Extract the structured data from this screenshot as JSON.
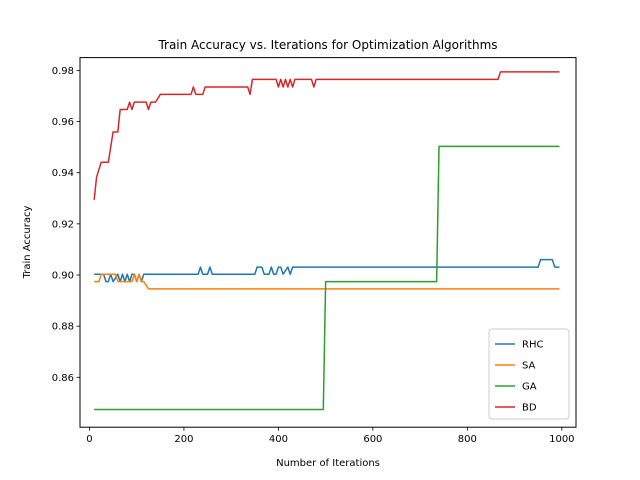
{
  "chart_data": {
    "type": "line",
    "title": "Train Accuracy vs. Iterations for Optimization Algorithms",
    "xlabel": "Number of Iterations",
    "ylabel": "Train Accuracy",
    "xlim": [
      -20,
      1030
    ],
    "ylim": [
      0.8405,
      0.985
    ],
    "xticks": [
      0,
      200,
      400,
      600,
      800,
      1000
    ],
    "xtick_labels": [
      "0",
      "200",
      "400",
      "600",
      "800",
      "1000"
    ],
    "yticks": [
      0.86,
      0.88,
      0.9,
      0.92,
      0.94,
      0.96,
      0.98
    ],
    "ytick_labels": [
      "0.86",
      "0.88",
      "0.90",
      "0.92",
      "0.94",
      "0.96",
      "0.98"
    ],
    "grid": false,
    "legend_position": "lower-right",
    "series": [
      {
        "name": "RHC",
        "color": "#1f77b4",
        "x": [
          10,
          30,
          35,
          40,
          45,
          50,
          60,
          65,
          70,
          75,
          80,
          85,
          90,
          95,
          100,
          105,
          110,
          115,
          230,
          235,
          240,
          250,
          255,
          260,
          350,
          355,
          365,
          370,
          380,
          385,
          390,
          395,
          400,
          405,
          410,
          420,
          425,
          430,
          435,
          440,
          950,
          955,
          980,
          985,
          995
        ],
        "y": [
          0.9003,
          0.9003,
          0.8974,
          0.8974,
          0.9003,
          0.8974,
          0.9003,
          0.8974,
          0.9003,
          0.8974,
          0.9003,
          0.8974,
          0.9003,
          0.9003,
          0.8974,
          0.9003,
          0.8974,
          0.9003,
          0.9003,
          0.9031,
          0.9003,
          0.9003,
          0.9031,
          0.9003,
          0.9003,
          0.9031,
          0.9031,
          0.9003,
          0.9003,
          0.9031,
          0.9003,
          0.9003,
          0.9031,
          0.9031,
          0.9003,
          0.9031,
          0.9003,
          0.9031,
          0.9031,
          0.9031,
          0.9031,
          0.906,
          0.906,
          0.9031,
          0.9031
        ]
      },
      {
        "name": "SA",
        "color": "#ff7f0e",
        "x": [
          10,
          20,
          25,
          55,
          60,
          65,
          90,
          95,
          100,
          105,
          110,
          115,
          125,
          995
        ],
        "y": [
          0.8974,
          0.8974,
          0.9003,
          0.9003,
          0.8974,
          0.8974,
          0.8974,
          0.9003,
          0.8974,
          0.9003,
          0.8974,
          0.8974,
          0.8946,
          0.8946
        ]
      },
      {
        "name": "GA",
        "color": "#2ca02c",
        "x": [
          10,
          495,
          500,
          735,
          740,
          995
        ],
        "y": [
          0.8474,
          0.8474,
          0.8974,
          0.8974,
          0.9503,
          0.9503
        ]
      },
      {
        "name": "BD",
        "color": "#d62728",
        "x": [
          10,
          15,
          20,
          25,
          30,
          35,
          40,
          45,
          50,
          55,
          60,
          65,
          70,
          75,
          80,
          85,
          90,
          95,
          100,
          105,
          110,
          115,
          120,
          125,
          130,
          140,
          150,
          155,
          215,
          220,
          225,
          235,
          240,
          245,
          330,
          335,
          340,
          345,
          380,
          385,
          390,
          395,
          400,
          405,
          410,
          415,
          420,
          425,
          430,
          435,
          440,
          445,
          470,
          475,
          480,
          485,
          490,
          865,
          870,
          995
        ],
        "y": [
          0.9294,
          0.9382,
          0.9412,
          0.9441,
          0.9441,
          0.9441,
          0.9441,
          0.95,
          0.9559,
          0.9559,
          0.9559,
          0.9647,
          0.9647,
          0.9647,
          0.9647,
          0.9676,
          0.9647,
          0.9676,
          0.9676,
          0.9676,
          0.9676,
          0.9676,
          0.9676,
          0.9647,
          0.9676,
          0.9676,
          0.9706,
          0.9706,
          0.9706,
          0.9735,
          0.9706,
          0.9706,
          0.9706,
          0.9735,
          0.9735,
          0.9735,
          0.9706,
          0.9765,
          0.9765,
          0.9765,
          0.9765,
          0.9765,
          0.9735,
          0.9765,
          0.9735,
          0.9765,
          0.9735,
          0.9765,
          0.9735,
          0.9765,
          0.9765,
          0.9765,
          0.9765,
          0.9735,
          0.9765,
          0.9765,
          0.9765,
          0.9765,
          0.9794,
          0.9794
        ]
      }
    ]
  }
}
